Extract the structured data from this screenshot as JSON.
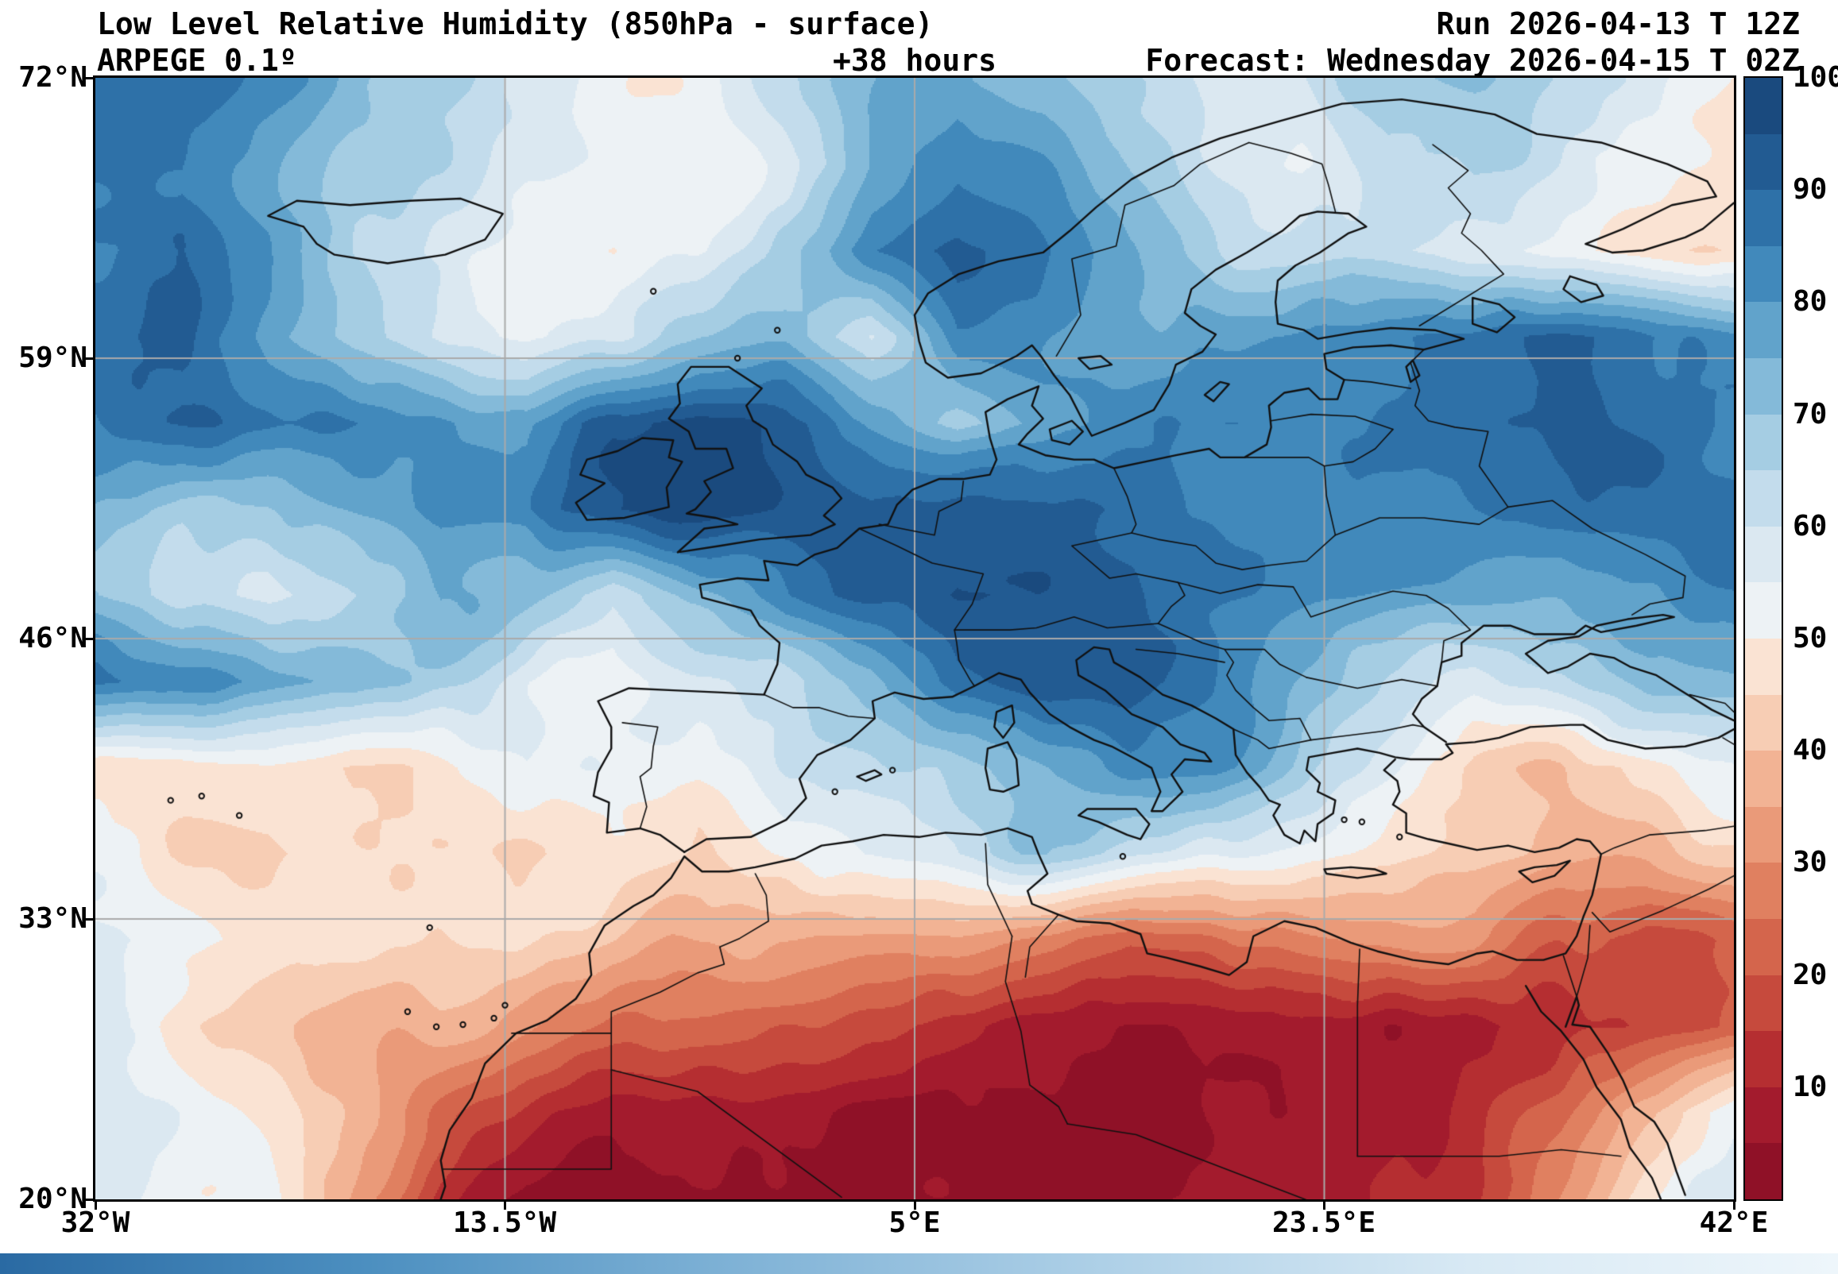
{
  "header": {
    "title": "Low Level Relative Humidity (850hPa - surface)",
    "model": "ARPEGE 0.1º",
    "lead_time": "+38 hours",
    "run": "Run 2026-04-13 T 12Z",
    "forecast": "Forecast: Wednesday 2026-04-15 T 02Z"
  },
  "axes": {
    "lat_ticks": [
      "72°N",
      "59°N",
      "46°N",
      "33°N",
      "20°N"
    ],
    "lat_values": [
      72,
      59,
      46,
      33,
      20
    ],
    "lon_ticks": [
      "32°W",
      "13.5°W",
      "5°E",
      "23.5°E",
      "42°E"
    ],
    "lon_values": [
      -32,
      -13.5,
      5,
      23.5,
      42
    ],
    "grid_lat": [
      59,
      46,
      33
    ],
    "grid_lon": [
      -13.5,
      5,
      23.5
    ]
  },
  "colorbar": {
    "ticks": [
      100,
      90,
      80,
      70,
      60,
      50,
      40,
      30,
      20,
      10
    ],
    "min": 0,
    "max": 100,
    "level_step": 5,
    "units": "%",
    "colors_low_to_high": [
      "#8f1127",
      "#a31b2d",
      "#b52e31",
      "#c64a3d",
      "#d4654c",
      "#e08060",
      "#ea9a79",
      "#f2b394",
      "#f7cdb4",
      "#fae3d3",
      "#edf2f5",
      "#dbe8f1",
      "#c3dcec",
      "#a5cde3",
      "#84bad9",
      "#61a3cb",
      "#4189bb",
      "#2e71a8",
      "#225b92",
      "#1a4a7e"
    ]
  },
  "colors": {
    "background": "#ffffff",
    "text": "#000000",
    "outline": "#111111",
    "grid_line": "#aaaaaa",
    "frame": "#000000",
    "footer_gradient": [
      "#2a6aa3",
      "#4c8fc0",
      "#7fb2d6",
      "#aed0e7",
      "#d8e9f4",
      "#eef6fb"
    ]
  },
  "chart_data": {
    "type": "heatmap",
    "title": "Low Level Relative Humidity (850hPa - surface)",
    "units": "%",
    "lon_range": [
      -32,
      42
    ],
    "lat_range": [
      20,
      72
    ],
    "grid_order": "rows north to south (72N to 20N), columns west to east (32W to 42E)",
    "values": [
      [
        90,
        92,
        85,
        75,
        70,
        62,
        55,
        52,
        60,
        72,
        80,
        75,
        65,
        58,
        62,
        70,
        68,
        60,
        52,
        48
      ],
      [
        88,
        90,
        82,
        72,
        68,
        58,
        52,
        50,
        58,
        75,
        85,
        80,
        70,
        62,
        58,
        65,
        62,
        55,
        50,
        45
      ],
      [
        85,
        88,
        80,
        65,
        60,
        55,
        50,
        52,
        65,
        85,
        92,
        85,
        72,
        65,
        60,
        58,
        52,
        48,
        45,
        42
      ],
      [
        88,
        90,
        78,
        68,
        62,
        55,
        58,
        70,
        72,
        60,
        85,
        80,
        72,
        75,
        78,
        82,
        85,
        88,
        85,
        80
      ],
      [
        85,
        88,
        90,
        88,
        82,
        78,
        92,
        96,
        92,
        80,
        68,
        75,
        82,
        85,
        82,
        85,
        88,
        90,
        88,
        85
      ],
      [
        78,
        68,
        72,
        80,
        85,
        82,
        92,
        98,
        95,
        90,
        92,
        90,
        88,
        85,
        82,
        85,
        88,
        90,
        92,
        88
      ],
      [
        75,
        65,
        60,
        68,
        78,
        70,
        58,
        72,
        88,
        92,
        95,
        92,
        90,
        88,
        85,
        82,
        80,
        78,
        82,
        85
      ],
      [
        88,
        85,
        82,
        78,
        68,
        55,
        50,
        58,
        65,
        72,
        88,
        92,
        90,
        85,
        75,
        65,
        60,
        65,
        72,
        75
      ],
      [
        50,
        48,
        52,
        48,
        50,
        55,
        52,
        48,
        60,
        62,
        68,
        75,
        82,
        78,
        65,
        55,
        45,
        42,
        48,
        55
      ],
      [
        52,
        48,
        45,
        50,
        48,
        45,
        48,
        42,
        50,
        55,
        62,
        68,
        60,
        55,
        52,
        48,
        45,
        40,
        38,
        42
      ],
      [
        55,
        52,
        50,
        48,
        45,
        42,
        38,
        35,
        32,
        30,
        32,
        28,
        22,
        25,
        28,
        32,
        35,
        25,
        20,
        25
      ],
      [
        50,
        46,
        44,
        40,
        38,
        30,
        22,
        18,
        15,
        12,
        10,
        8,
        8,
        10,
        12,
        10,
        12,
        15,
        18,
        22
      ],
      [
        55,
        52,
        45,
        35,
        25,
        15,
        8,
        5,
        4,
        4,
        5,
        4,
        5,
        6,
        8,
        10,
        15,
        25,
        45,
        60
      ],
      [
        58,
        52,
        48,
        30,
        15,
        8,
        5,
        4,
        4,
        5,
        5,
        4,
        5,
        6,
        8,
        12,
        20,
        35,
        55,
        65
      ]
    ]
  }
}
